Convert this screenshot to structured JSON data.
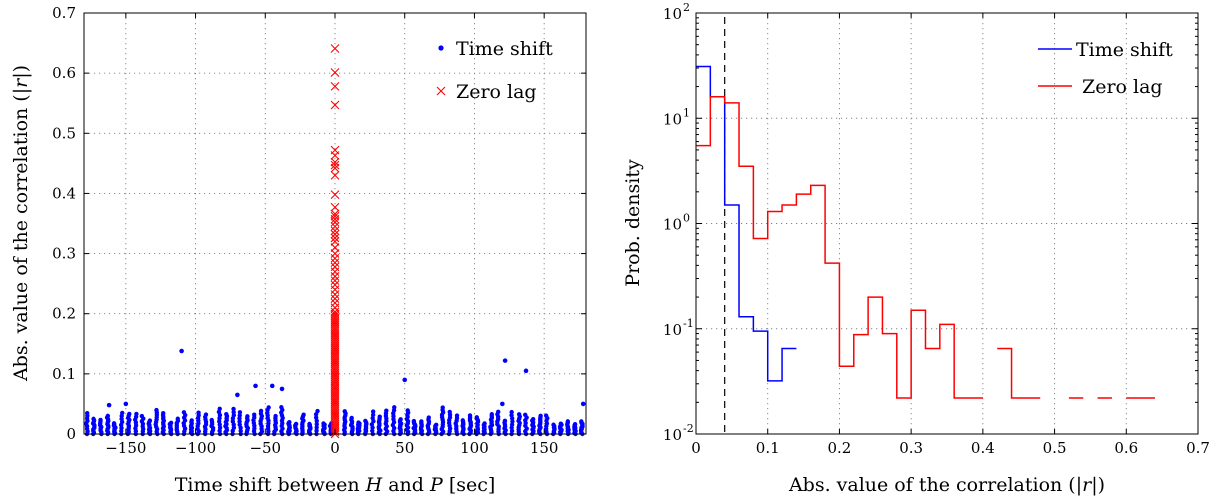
{
  "chart_data": [
    {
      "type": "scatter",
      "xlabel": "Time shift between H and P [sec]",
      "ylabel": "Abs. value of the correlation (|r|)",
      "xlim": [
        -180,
        180
      ],
      "ylim": [
        0,
        0.7
      ],
      "xticks": [
        -150,
        -100,
        -50,
        0,
        50,
        100,
        150
      ],
      "xtick_labels": [
        "−150",
        "−100",
        "−50",
        "0",
        "50",
        "100",
        "150"
      ],
      "yticks": [
        0,
        0.1,
        0.2,
        0.3,
        0.4,
        0.5,
        0.6,
        0.7
      ],
      "ytick_labels": [
        "0",
        "0.1",
        "0.2",
        "0.3",
        "0.4",
        "0.5",
        "0.6",
        "0.7"
      ],
      "grid": true,
      "legend_position": "top-right",
      "series": [
        {
          "name": "Time shift",
          "marker": "dot",
          "color": "#0000ff",
          "notable_points": [
            {
              "x": -110,
              "y": 0.138
            },
            {
              "x": -45,
              "y": 0.08
            },
            {
              "x": -38,
              "y": 0.075
            },
            {
              "x": -57,
              "y": 0.08
            },
            {
              "x": -70,
              "y": 0.065
            },
            {
              "x": 50,
              "y": 0.09
            },
            {
              "x": 122,
              "y": 0.122
            },
            {
              "x": 137,
              "y": 0.105
            },
            {
              "x": -150,
              "y": 0.05
            },
            {
              "x": -162,
              "y": 0.048
            },
            {
              "x": 120,
              "y": 0.05
            },
            {
              "x": 178,
              "y": 0.05
            }
          ],
          "bulk_columns_x_range": [
            -178,
            178
          ],
          "bulk_columns_y_max": 0.045
        },
        {
          "name": "Zero lag",
          "marker": "x",
          "color": "#ff0000",
          "x": 0,
          "y": [
            0.641,
            0.601,
            0.578,
            0.547,
            0.472,
            0.463,
            0.452,
            0.447,
            0.442,
            0.43,
            0.398,
            0.377,
            0.366,
            0.362,
            0.357,
            0.352,
            0.345,
            0.338,
            0.332,
            0.326,
            0.32,
            0.31,
            0.3,
            0.292,
            0.285,
            0.278,
            0.27,
            0.262,
            0.255,
            0.248,
            0.24,
            0.232,
            0.225,
            0.218,
            0.21
          ]
        }
      ]
    },
    {
      "type": "line",
      "subtype": "step histogram",
      "xlabel": "Abs. value of the correlation (|r|)",
      "ylabel": "Prob. density",
      "xlim": [
        0,
        0.7
      ],
      "ylim": [
        0.01,
        100
      ],
      "yscale": "log",
      "xticks": [
        0,
        0.1,
        0.2,
        0.3,
        0.4,
        0.5,
        0.6,
        0.7
      ],
      "xtick_labels": [
        "0",
        "0.1",
        "0.2",
        "0.3",
        "0.4",
        "0.5",
        "0.6",
        "0.7"
      ],
      "yticks": [
        0.01,
        0.1,
        1,
        10,
        100
      ],
      "ytick_labels": [
        {
          "base": "10",
          "exp": "-2"
        },
        {
          "base": "10",
          "exp": "-1"
        },
        {
          "base": "10",
          "exp": "0"
        },
        {
          "base": "10",
          "exp": "1"
        },
        {
          "base": "10",
          "exp": "2"
        }
      ],
      "grid": true,
      "legend_position": "top-right",
      "threshold_line": {
        "x": 0.04,
        "style": "dashed",
        "color": "#000000"
      },
      "bin_edges": [
        0,
        0.02,
        0.04,
        0.06,
        0.08,
        0.1,
        0.12,
        0.14,
        0.16,
        0.18,
        0.2,
        0.22,
        0.24,
        0.26,
        0.28,
        0.3,
        0.32,
        0.34,
        0.36,
        0.38,
        0.4,
        0.42,
        0.44,
        0.46,
        0.48,
        0.5,
        0.52,
        0.54,
        0.56,
        0.58,
        0.6,
        0.62,
        0.64,
        0.66
      ],
      "series": [
        {
          "name": "Time shift",
          "color": "#0000ff",
          "values": [
            31,
            16,
            1.5,
            0.13,
            0.095,
            0.032,
            0.065
          ]
        },
        {
          "name": "Zero lag",
          "color": "#ff0000",
          "values": [
            5.5,
            16,
            14,
            3.5,
            0.72,
            1.3,
            1.5,
            1.9,
            2.3,
            0.42,
            0.044,
            0.088,
            0.2,
            0.09,
            0.022,
            0.15,
            0.065,
            0.11,
            0.022,
            0.022,
            null,
            0.065,
            0.022,
            0.022,
            null,
            null,
            0.022,
            null,
            0.022,
            null,
            0.022,
            0.022,
            null
          ]
        }
      ]
    }
  ]
}
